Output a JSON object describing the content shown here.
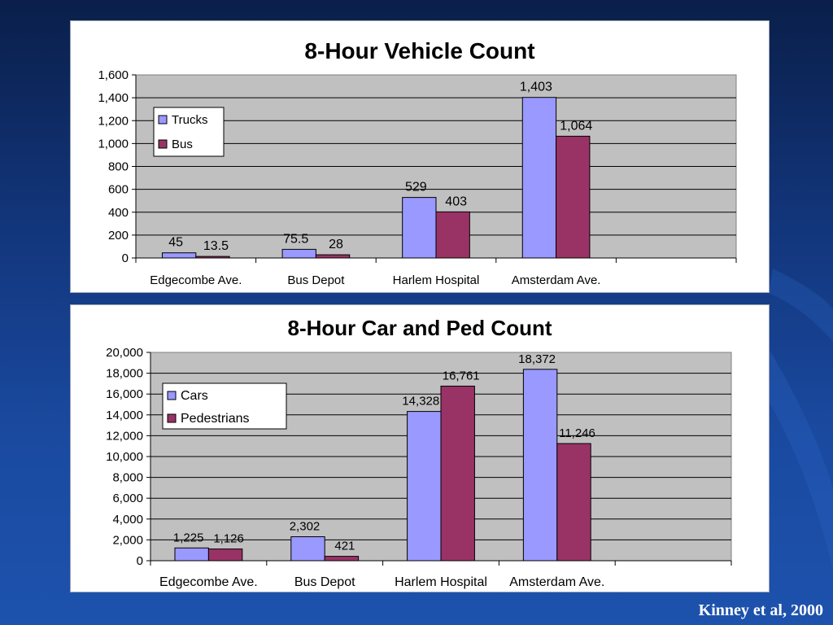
{
  "citation": "Kinney et al, 2000",
  "colors": {
    "series1": "#9999ff",
    "series2": "#993366",
    "plot_bg": "#c0c0c0"
  },
  "chart_data": [
    {
      "type": "bar",
      "title": "8-Hour Vehicle Count",
      "categories": [
        "Edgecombe Ave.",
        "Bus Depot",
        "Harlem Hospital",
        "Amsterdam Ave."
      ],
      "series": [
        {
          "name": "Trucks",
          "values": [
            45,
            75.5,
            529,
            1403
          ],
          "labels": [
            "45",
            "75.5",
            "529",
            "1,403"
          ]
        },
        {
          "name": "Bus",
          "values": [
            13.5,
            28,
            403,
            1064
          ],
          "labels": [
            "13.5",
            "28",
            "403",
            "1,064"
          ]
        }
      ],
      "ylim": [
        0,
        1600
      ],
      "yticks": [
        "0",
        "200",
        "400",
        "600",
        "800",
        "1,000",
        "1,200",
        "1,400",
        "1,600"
      ],
      "xlabel": "",
      "ylabel": "",
      "grid": true,
      "legend": "top-left"
    },
    {
      "type": "bar",
      "title": "8-Hour Car and Ped Count",
      "categories": [
        "Edgecombe Ave.",
        "Bus Depot",
        "Harlem Hospital",
        "Amsterdam Ave."
      ],
      "series": [
        {
          "name": "Cars",
          "values": [
            1225,
            2302,
            14328,
            18372
          ],
          "labels": [
            "1,225",
            "2,302",
            "14,328",
            "18,372"
          ]
        },
        {
          "name": "Pedestrians",
          "values": [
            1126,
            421,
            16761,
            11246
          ],
          "labels": [
            "1,126",
            "421",
            "16,761",
            "11,246"
          ]
        }
      ],
      "ylim": [
        0,
        20000
      ],
      "yticks": [
        "0",
        "2,000",
        "4,000",
        "6,000",
        "8,000",
        "10,000",
        "12,000",
        "14,000",
        "16,000",
        "18,000",
        "20,000"
      ],
      "xlabel": "",
      "ylabel": "",
      "grid": true,
      "legend": "top-left"
    }
  ]
}
